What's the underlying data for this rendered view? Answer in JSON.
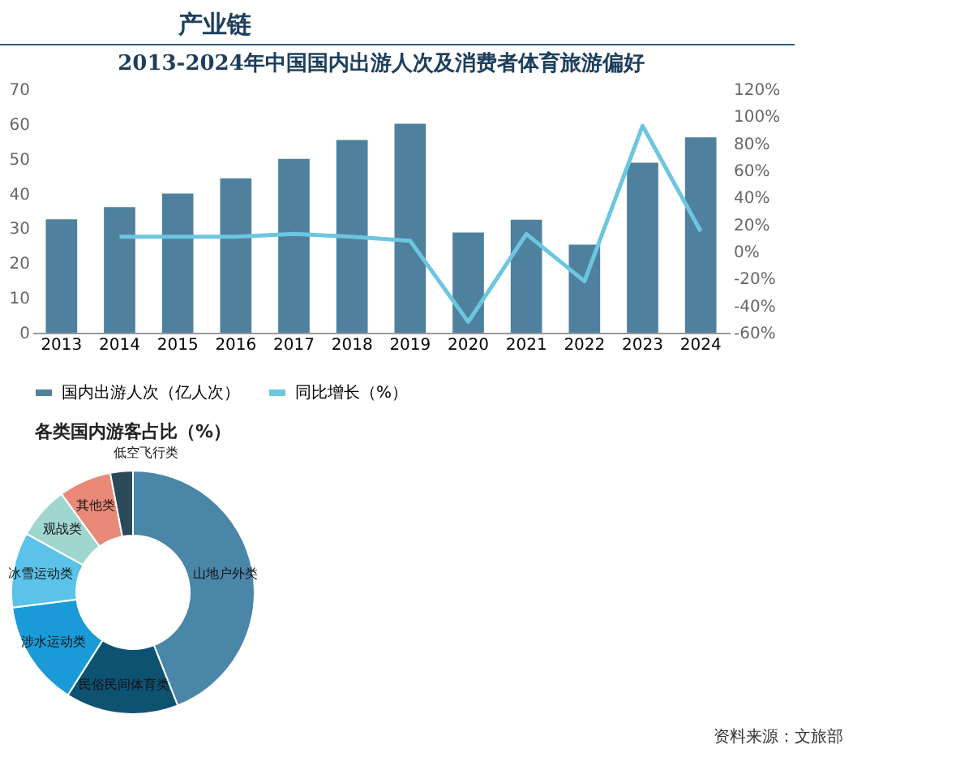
{
  "chart_data": [
    {
      "type": "bar",
      "title": "2013-2024年中国国内出游人次及消费者体育旅游偏好",
      "annotations": [
        "产业链"
      ],
      "categories": [
        "2013",
        "2014",
        "2015",
        "2016",
        "2017",
        "2018",
        "2019",
        "2020",
        "2021",
        "2022",
        "2023",
        "2024"
      ],
      "series": [
        {
          "name": "国内出游人次（亿人次）",
          "type": "bar",
          "color": "#4f819e",
          "values": [
            32.6,
            36.1,
            40.0,
            44.4,
            50.0,
            55.4,
            60.1,
            28.8,
            32.5,
            25.3,
            48.9,
            56.2
          ]
        },
        {
          "name": "同比增长（%）",
          "type": "line",
          "axis": "y2",
          "color": "#6cc6e0",
          "values": [
            null,
            11,
            11,
            11,
            13,
            11,
            8,
            -52,
            13,
            -22,
            93,
            15
          ]
        }
      ],
      "ylim": [
        0,
        70
      ],
      "yticks": [
        0,
        10,
        20,
        30,
        40,
        50,
        60,
        70
      ],
      "y2lim": [
        -60,
        120
      ],
      "y2ticks": [
        {
          "value": -60,
          "label": "-60%"
        },
        {
          "value": -40,
          "label": "-40%"
        },
        {
          "value": -20,
          "label": "-20%"
        },
        {
          "value": 0,
          "label": "0%"
        },
        {
          "value": 20,
          "label": "20%"
        },
        {
          "value": 40,
          "label": "40%"
        },
        {
          "value": 60,
          "label": "60%"
        },
        {
          "value": 80,
          "label": "80%"
        },
        {
          "value": 100,
          "label": "100%"
        },
        {
          "value": 120,
          "label": "120%"
        }
      ],
      "legend": "bottom"
    },
    {
      "type": "donut",
      "title": "各类国内游客占比（%）",
      "annotations": [
        "资料来源：文旅部"
      ],
      "categories": [
        "山地户外类",
        "民俗民间体育类",
        "涉水运动类",
        "冰雪运动类",
        "观战类",
        "其他类",
        "低空飞行类"
      ],
      "values": [
        44,
        15,
        14,
        10,
        7,
        7,
        3
      ],
      "colors": [
        "#4a86a8",
        "#0e5272",
        "#1a9ad6",
        "#5bc2ea",
        "#9fd6cf",
        "#e98a78",
        "#2a4a5a"
      ]
    }
  ]
}
